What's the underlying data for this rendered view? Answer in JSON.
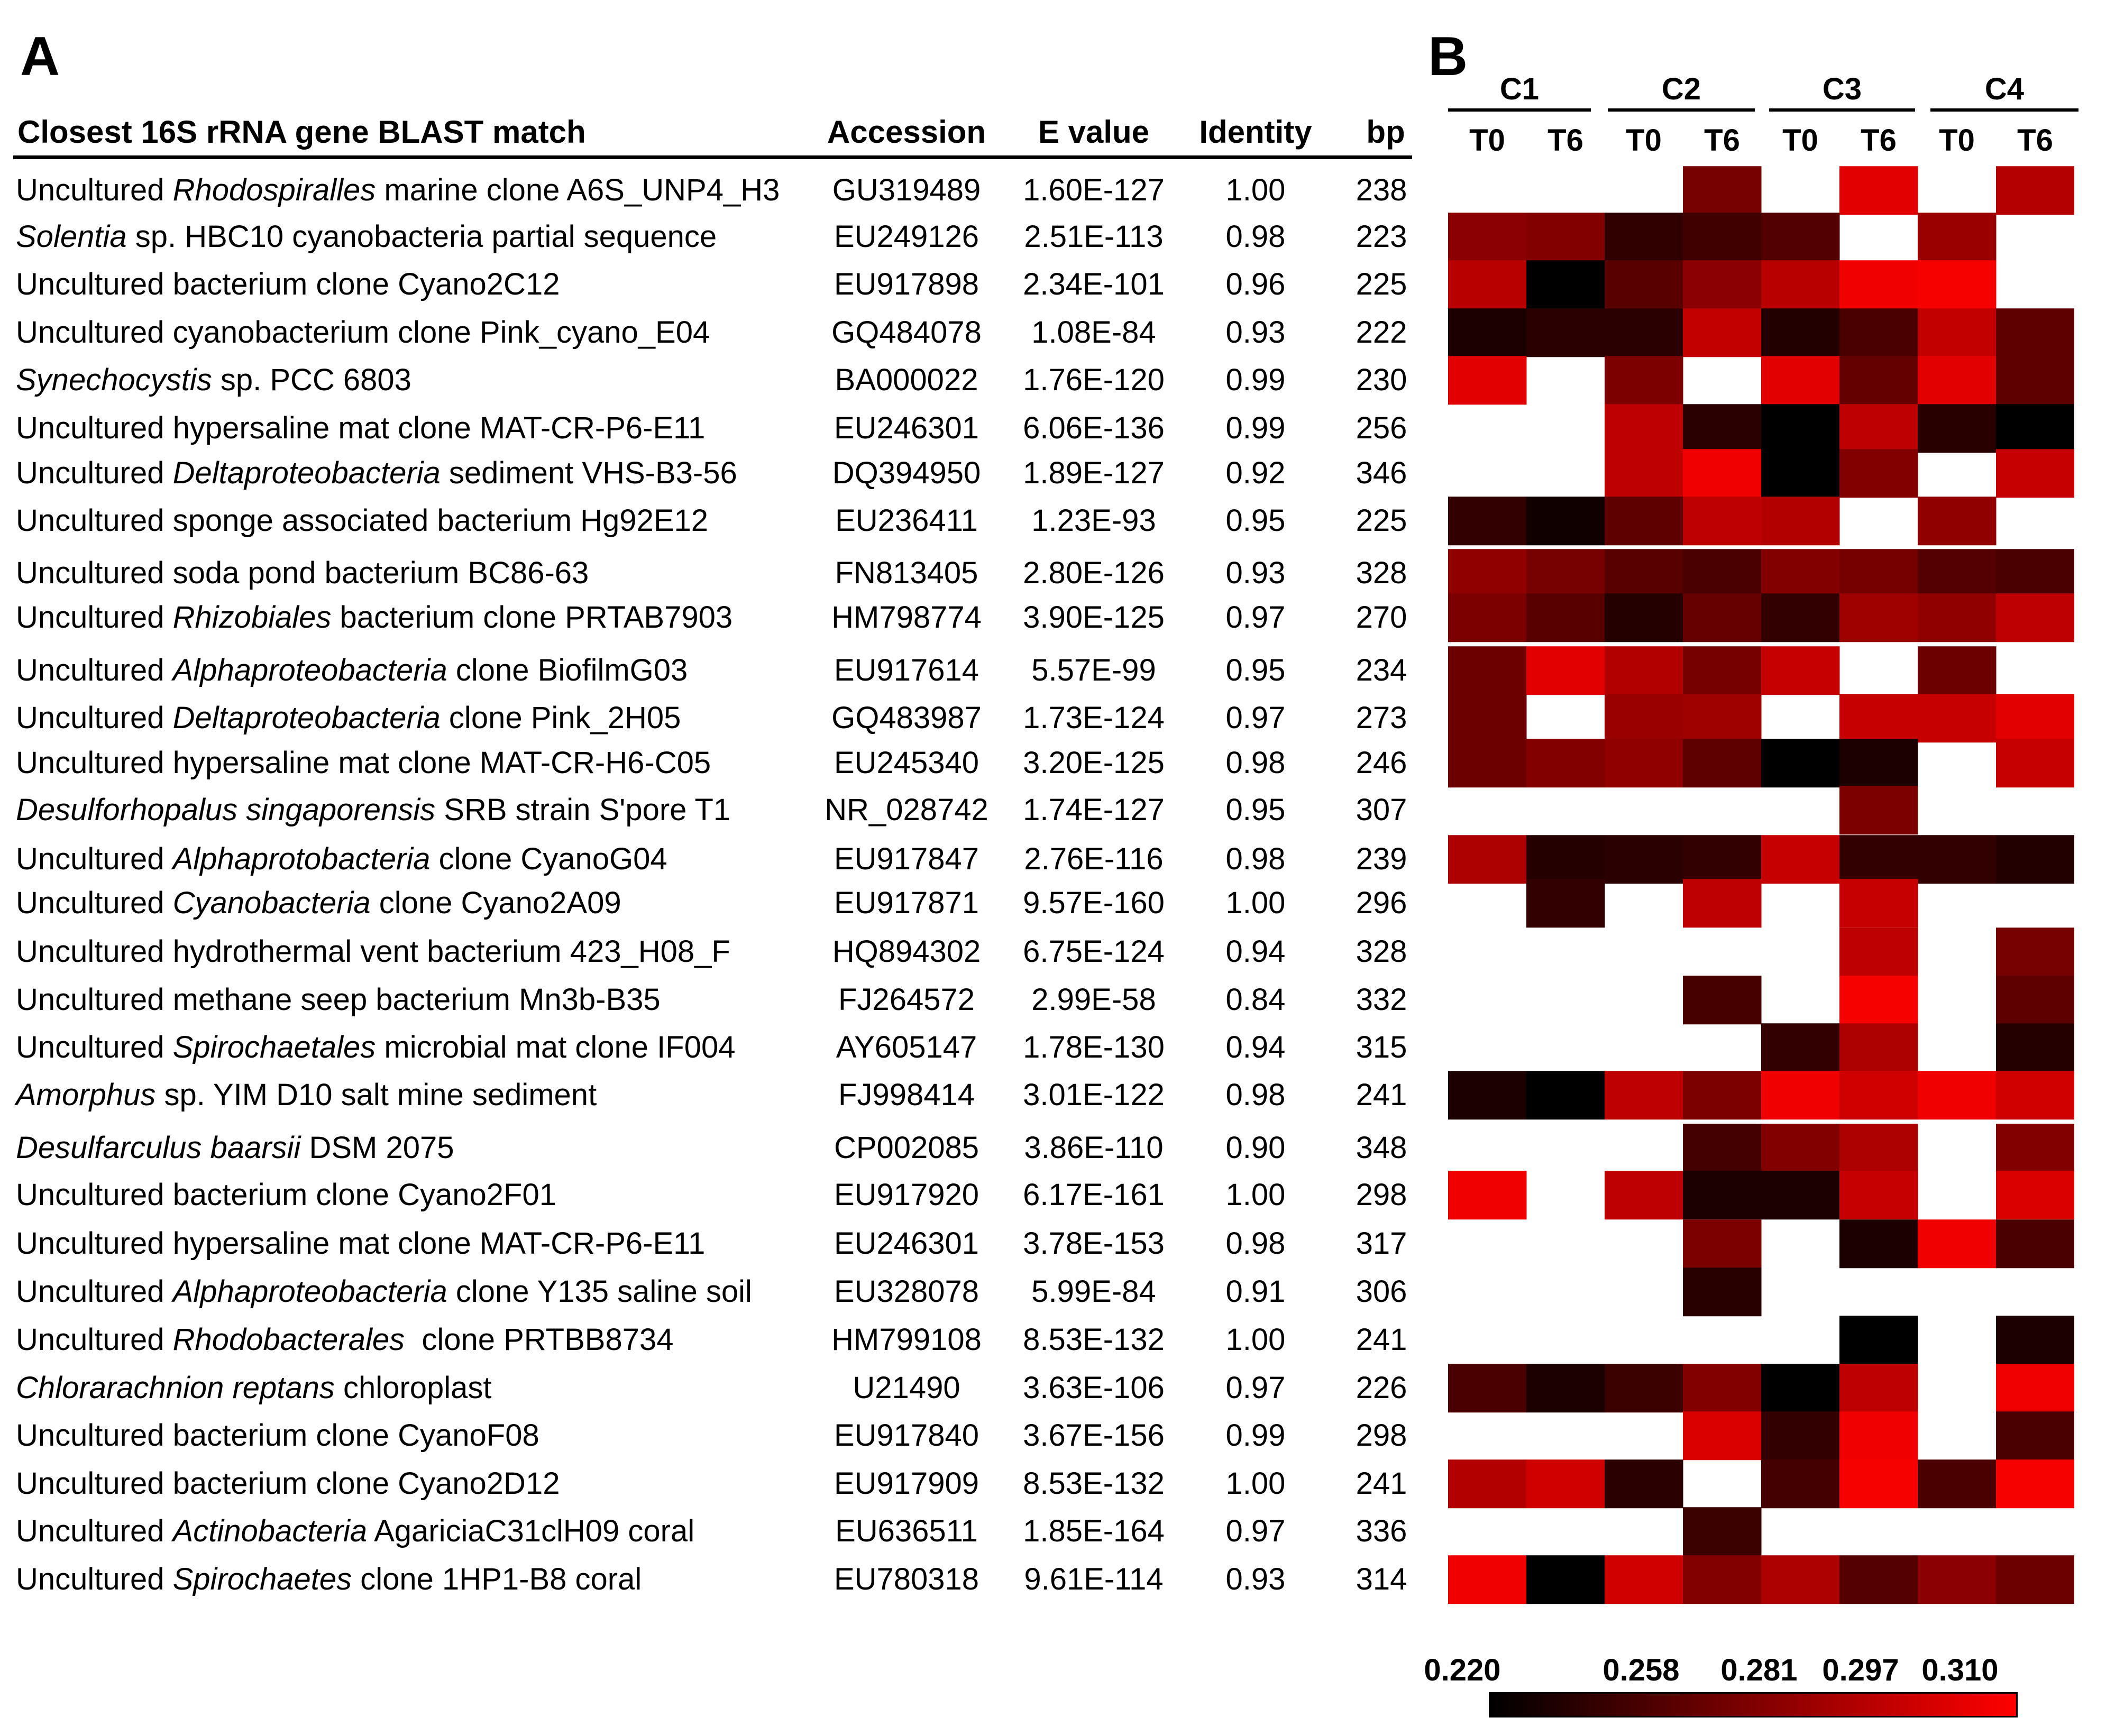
{
  "panels": {
    "a": "A",
    "b": "B"
  },
  "table": {
    "headers": {
      "match": "Closest 16S rRNA gene BLAST match",
      "accession": "Accession",
      "evalue": "E value",
      "identity": "Identity",
      "bp": "bp"
    },
    "rows": [
      {
        "name": [
          [
            "Uncultured ",
            false
          ],
          [
            "Rhodospiralles",
            true
          ],
          [
            " marine clone A6S_UNP4_H3",
            false
          ]
        ],
        "accession": "GU319489",
        "evalue": "1.60E-127",
        "identity": "1.00",
        "bp": "238"
      },
      {
        "name": [
          [
            "Solentia",
            true
          ],
          [
            " sp. HBC10 cyanobacteria partial sequence",
            false
          ]
        ],
        "accession": "EU249126",
        "evalue": "2.51E-113",
        "identity": "0.98",
        "bp": "223"
      },
      {
        "name": [
          [
            "Uncultured bacterium clone Cyano2C12",
            false
          ]
        ],
        "accession": "EU917898",
        "evalue": "2.34E-101",
        "identity": "0.96",
        "bp": "225"
      },
      {
        "name": [
          [
            "Uncultured cyanobacterium clone Pink_cyano_E04",
            false
          ]
        ],
        "accession": "GQ484078",
        "evalue": "1.08E-84",
        "identity": "0.93",
        "bp": "222"
      },
      {
        "name": [
          [
            "Synechocystis",
            true
          ],
          [
            " sp. PCC 6803",
            false
          ]
        ],
        "accession": "BA000022",
        "evalue": "1.76E-120",
        "identity": "0.99",
        "bp": "230"
      },
      {
        "name": [
          [
            "Uncultured hypersaline mat clone MAT-CR-P6-E11",
            false
          ]
        ],
        "accession": "EU246301",
        "evalue": "6.06E-136",
        "identity": "0.99",
        "bp": "256"
      },
      {
        "name": [
          [
            "Uncultured ",
            false
          ],
          [
            "Deltaproteobacteria",
            true
          ],
          [
            " sediment VHS-B3-56",
            false
          ]
        ],
        "accession": "DQ394950",
        "evalue": "1.89E-127",
        "identity": "0.92",
        "bp": "346"
      },
      {
        "name": [
          [
            "Uncultured sponge associated bacterium Hg92E12",
            false
          ]
        ],
        "accession": "EU236411",
        "evalue": "1.23E-93",
        "identity": "0.95",
        "bp": "225"
      },
      {
        "name": [
          [
            "Uncultured soda pond bacterium BC86-63",
            false
          ]
        ],
        "accession": "FN813405",
        "evalue": "2.80E-126",
        "identity": "0.93",
        "bp": "328"
      },
      {
        "name": [
          [
            "Uncultured ",
            false
          ],
          [
            "Rhizobiales",
            true
          ],
          [
            " bacterium clone PRTAB7903",
            false
          ]
        ],
        "accession": "HM798774",
        "evalue": "3.90E-125",
        "identity": "0.97",
        "bp": "270"
      },
      {
        "name": [
          [
            "Uncultured ",
            false
          ],
          [
            "Alphaproteobacteria",
            true
          ],
          [
            " clone BiofilmG03",
            false
          ]
        ],
        "accession": "EU917614",
        "evalue": "5.57E-99",
        "identity": "0.95",
        "bp": "234"
      },
      {
        "name": [
          [
            "Uncultured ",
            false
          ],
          [
            "Deltaproteobacteria",
            true
          ],
          [
            " clone Pink_2H05",
            false
          ]
        ],
        "accession": "GQ483987",
        "evalue": "1.73E-124",
        "identity": "0.97",
        "bp": "273"
      },
      {
        "name": [
          [
            "Uncultured hypersaline mat clone MAT-CR-H6-C05",
            false
          ]
        ],
        "accession": "EU245340",
        "evalue": "3.20E-125",
        "identity": "0.98",
        "bp": "246"
      },
      {
        "name": [
          [
            "Desulforhopalus singaporensis",
            true
          ],
          [
            " SRB strain S'pore T1",
            false
          ]
        ],
        "accession": "NR_028742",
        "evalue": "1.74E-127",
        "identity": "0.95",
        "bp": "307"
      },
      {
        "name": [
          [
            "Uncultured ",
            false
          ],
          [
            "Alphaprotobacteria",
            true
          ],
          [
            " clone CyanoG04",
            false
          ]
        ],
        "accession": "EU917847",
        "evalue": "2.76E-116",
        "identity": "0.98",
        "bp": "239"
      },
      {
        "name": [
          [
            "Uncultured ",
            false
          ],
          [
            "Cyanobacteria",
            true
          ],
          [
            " clone Cyano2A09",
            false
          ]
        ],
        "accession": "EU917871",
        "evalue": "9.57E-160",
        "identity": "1.00",
        "bp": "296"
      },
      {
        "name": [
          [
            "Uncultured hydrothermal vent bacterium 423_H08_F",
            false
          ]
        ],
        "accession": "HQ894302",
        "evalue": "6.75E-124",
        "identity": "0.94",
        "bp": "328"
      },
      {
        "name": [
          [
            "Uncultured methane seep bacterium Mn3b-B35",
            false
          ]
        ],
        "accession": "FJ264572",
        "evalue": "2.99E-58",
        "identity": "0.84",
        "bp": "332"
      },
      {
        "name": [
          [
            "Uncultured ",
            false
          ],
          [
            "Spirochaetales",
            true
          ],
          [
            " microbial mat clone IF004",
            false
          ]
        ],
        "accession": "AY605147",
        "evalue": "1.78E-130",
        "identity": "0.94",
        "bp": "315"
      },
      {
        "name": [
          [
            "Amorphus",
            true
          ],
          [
            " sp. YIM D10 salt mine sediment",
            false
          ]
        ],
        "accession": "FJ998414",
        "evalue": "3.01E-122",
        "identity": "0.98",
        "bp": "241"
      },
      {
        "name": [
          [
            "Desulfarculus baarsii",
            true
          ],
          [
            " DSM 2075",
            false
          ]
        ],
        "accession": "CP002085",
        "evalue": "3.86E-110",
        "identity": "0.90",
        "bp": "348"
      },
      {
        "name": [
          [
            "Uncultured bacterium clone Cyano2F01",
            false
          ]
        ],
        "accession": "EU917920",
        "evalue": "6.17E-161",
        "identity": "1.00",
        "bp": "298"
      },
      {
        "name": [
          [
            "Uncultured hypersaline mat clone MAT-CR-P6-E11",
            false
          ]
        ],
        "accession": "EU246301",
        "evalue": "3.78E-153",
        "identity": "0.98",
        "bp": "317"
      },
      {
        "name": [
          [
            "Uncultured ",
            false
          ],
          [
            "Alphaproteobacteria",
            true
          ],
          [
            " clone Y135 saline soil",
            false
          ]
        ],
        "accession": "EU328078",
        "evalue": "5.99E-84",
        "identity": "0.91",
        "bp": "306"
      },
      {
        "name": [
          [
            "Uncultured ",
            false
          ],
          [
            "Rhodobacterales",
            true
          ],
          [
            "  clone PRTBB8734",
            false
          ]
        ],
        "accession": "HM799108",
        "evalue": "8.53E-132",
        "identity": "1.00",
        "bp": "241"
      },
      {
        "name": [
          [
            "Chlorarachnion reptans",
            true
          ],
          [
            " chloroplast",
            false
          ]
        ],
        "accession": "U21490",
        "evalue": "3.63E-106",
        "identity": "0.97",
        "bp": "226"
      },
      {
        "name": [
          [
            "Uncultured bacterium clone CyanoF08",
            false
          ]
        ],
        "accession": "EU917840",
        "evalue": "3.67E-156",
        "identity": "0.99",
        "bp": "298"
      },
      {
        "name": [
          [
            "Uncultured bacterium clone Cyano2D12",
            false
          ]
        ],
        "accession": "EU917909",
        "evalue": "8.53E-132",
        "identity": "1.00",
        "bp": "241"
      },
      {
        "name": [
          [
            "Uncultured ",
            false
          ],
          [
            "Actinobacteria",
            true
          ],
          [
            " AgariciaC31clH09 coral",
            false
          ]
        ],
        "accession": "EU636511",
        "evalue": "1.85E-164",
        "identity": "0.97",
        "bp": "336"
      },
      {
        "name": [
          [
            "Uncultured ",
            false
          ],
          [
            "Spirochaetes",
            true
          ],
          [
            " clone 1HP1-B8 coral",
            false
          ]
        ],
        "accession": "EU780318",
        "evalue": "9.61E-114",
        "identity": "0.93",
        "bp": "314"
      }
    ]
  },
  "chart_data": {
    "type": "heatmap",
    "groups": [
      "C1",
      "C2",
      "C3",
      "C4"
    ],
    "columns": [
      "T0",
      "T6",
      "T0",
      "T6",
      "T0",
      "T6",
      "T0",
      "T6"
    ],
    "colorbar": {
      "ticks": [
        "0.220",
        "0.258",
        "0.281",
        "0.297",
        "0.310"
      ],
      "range": [
        0.22,
        0.31
      ],
      "colors": [
        "#000000",
        "#ff0000"
      ]
    },
    "empty_color": "#ffffff",
    "rows": [
      [
        null,
        null,
        null,
        0.262,
        null,
        0.3,
        null,
        0.284
      ],
      [
        0.269,
        0.266,
        0.237,
        0.243,
        0.249,
        null,
        0.274,
        null
      ],
      [
        0.285,
        0.22,
        0.251,
        0.269,
        0.285,
        0.305,
        0.307,
        null
      ],
      [
        0.23,
        0.235,
        0.235,
        0.289,
        0.232,
        0.246,
        0.289,
        0.253
      ],
      [
        0.3,
        null,
        0.264,
        null,
        0.3,
        0.255,
        0.3,
        0.253
      ],
      [
        null,
        null,
        0.287,
        0.235,
        0.22,
        0.287,
        0.234,
        0.22
      ],
      [
        null,
        null,
        0.287,
        0.305,
        0.22,
        0.266,
        null,
        0.29
      ],
      [
        0.238,
        0.226,
        0.253,
        0.287,
        0.283,
        null,
        0.271,
        null
      ],
      [
        0.271,
        0.262,
        0.251,
        0.246,
        0.266,
        0.261,
        0.25,
        0.246
      ],
      [
        0.264,
        0.251,
        0.233,
        0.256,
        0.238,
        0.276,
        0.271,
        0.287
      ],
      [
        0.258,
        0.3,
        0.283,
        0.261,
        0.29,
        null,
        0.258,
        null
      ],
      [
        0.258,
        null,
        0.274,
        0.276,
        null,
        0.29,
        0.29,
        0.3
      ],
      [
        0.258,
        0.266,
        0.271,
        0.253,
        0.22,
        0.23,
        null,
        0.29
      ],
      [
        null,
        null,
        null,
        null,
        null,
        0.264,
        null,
        null
      ],
      [
        0.281,
        0.233,
        0.235,
        0.238,
        0.29,
        0.238,
        0.238,
        0.232
      ],
      [
        null,
        0.238,
        null,
        0.287,
        null,
        0.29,
        null,
        null
      ],
      [
        null,
        null,
        null,
        null,
        null,
        0.287,
        null,
        0.262
      ],
      [
        null,
        null,
        null,
        0.245,
        null,
        0.307,
        null,
        0.253
      ],
      [
        null,
        null,
        null,
        null,
        0.238,
        0.281,
        null,
        0.233
      ],
      [
        0.23,
        0.22,
        0.287,
        0.264,
        0.305,
        0.293,
        0.305,
        0.293
      ],
      [
        null,
        null,
        null,
        0.244,
        0.266,
        0.281,
        null,
        0.266
      ],
      [
        0.305,
        null,
        0.287,
        0.23,
        0.23,
        0.29,
        null,
        0.297
      ],
      [
        null,
        null,
        null,
        0.264,
        null,
        0.23,
        0.305,
        0.246
      ],
      [
        null,
        null,
        null,
        0.234,
        null,
        null,
        null,
        null
      ],
      [
        null,
        null,
        null,
        null,
        null,
        0.22,
        null,
        0.23
      ],
      [
        0.246,
        0.23,
        0.241,
        0.266,
        0.22,
        0.287,
        null,
        0.305
      ],
      [
        null,
        null,
        null,
        0.297,
        0.238,
        0.305,
        null,
        0.246
      ],
      [
        0.283,
        0.293,
        0.235,
        null,
        0.244,
        0.307,
        0.246,
        0.307
      ],
      [
        null,
        null,
        null,
        0.241,
        null,
        null,
        null,
        null
      ],
      [
        0.305,
        0.22,
        0.293,
        0.266,
        0.281,
        0.25,
        0.269,
        0.258
      ]
    ]
  }
}
